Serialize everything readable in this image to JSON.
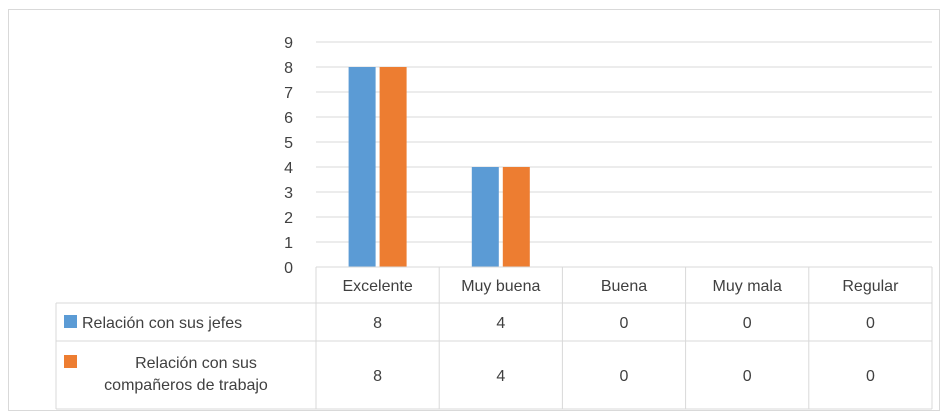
{
  "colors": {
    "series_1": "#5b9bd5",
    "series_2": "#ed7d31",
    "grid": "#d9d9d9",
    "text": "#404040"
  },
  "chart_data": {
    "type": "bar",
    "title": "",
    "xlabel": "",
    "ylabel": "",
    "categories": [
      "Excelente",
      "Muy buena",
      "Buena",
      "Muy mala",
      "Regular"
    ],
    "series": [
      {
        "name": "Relación con sus jefes",
        "values": [
          8,
          4,
          0,
          0,
          0
        ]
      },
      {
        "name": "Relación con sus compañeros de trabajo",
        "values": [
          8,
          4,
          0,
          0,
          0
        ]
      }
    ],
    "ylim": [
      0,
      9
    ],
    "yticks": [
      0,
      1,
      2,
      3,
      4,
      5,
      6,
      7,
      8,
      9
    ],
    "grid": true,
    "legend": "data-table",
    "data_table": true
  }
}
